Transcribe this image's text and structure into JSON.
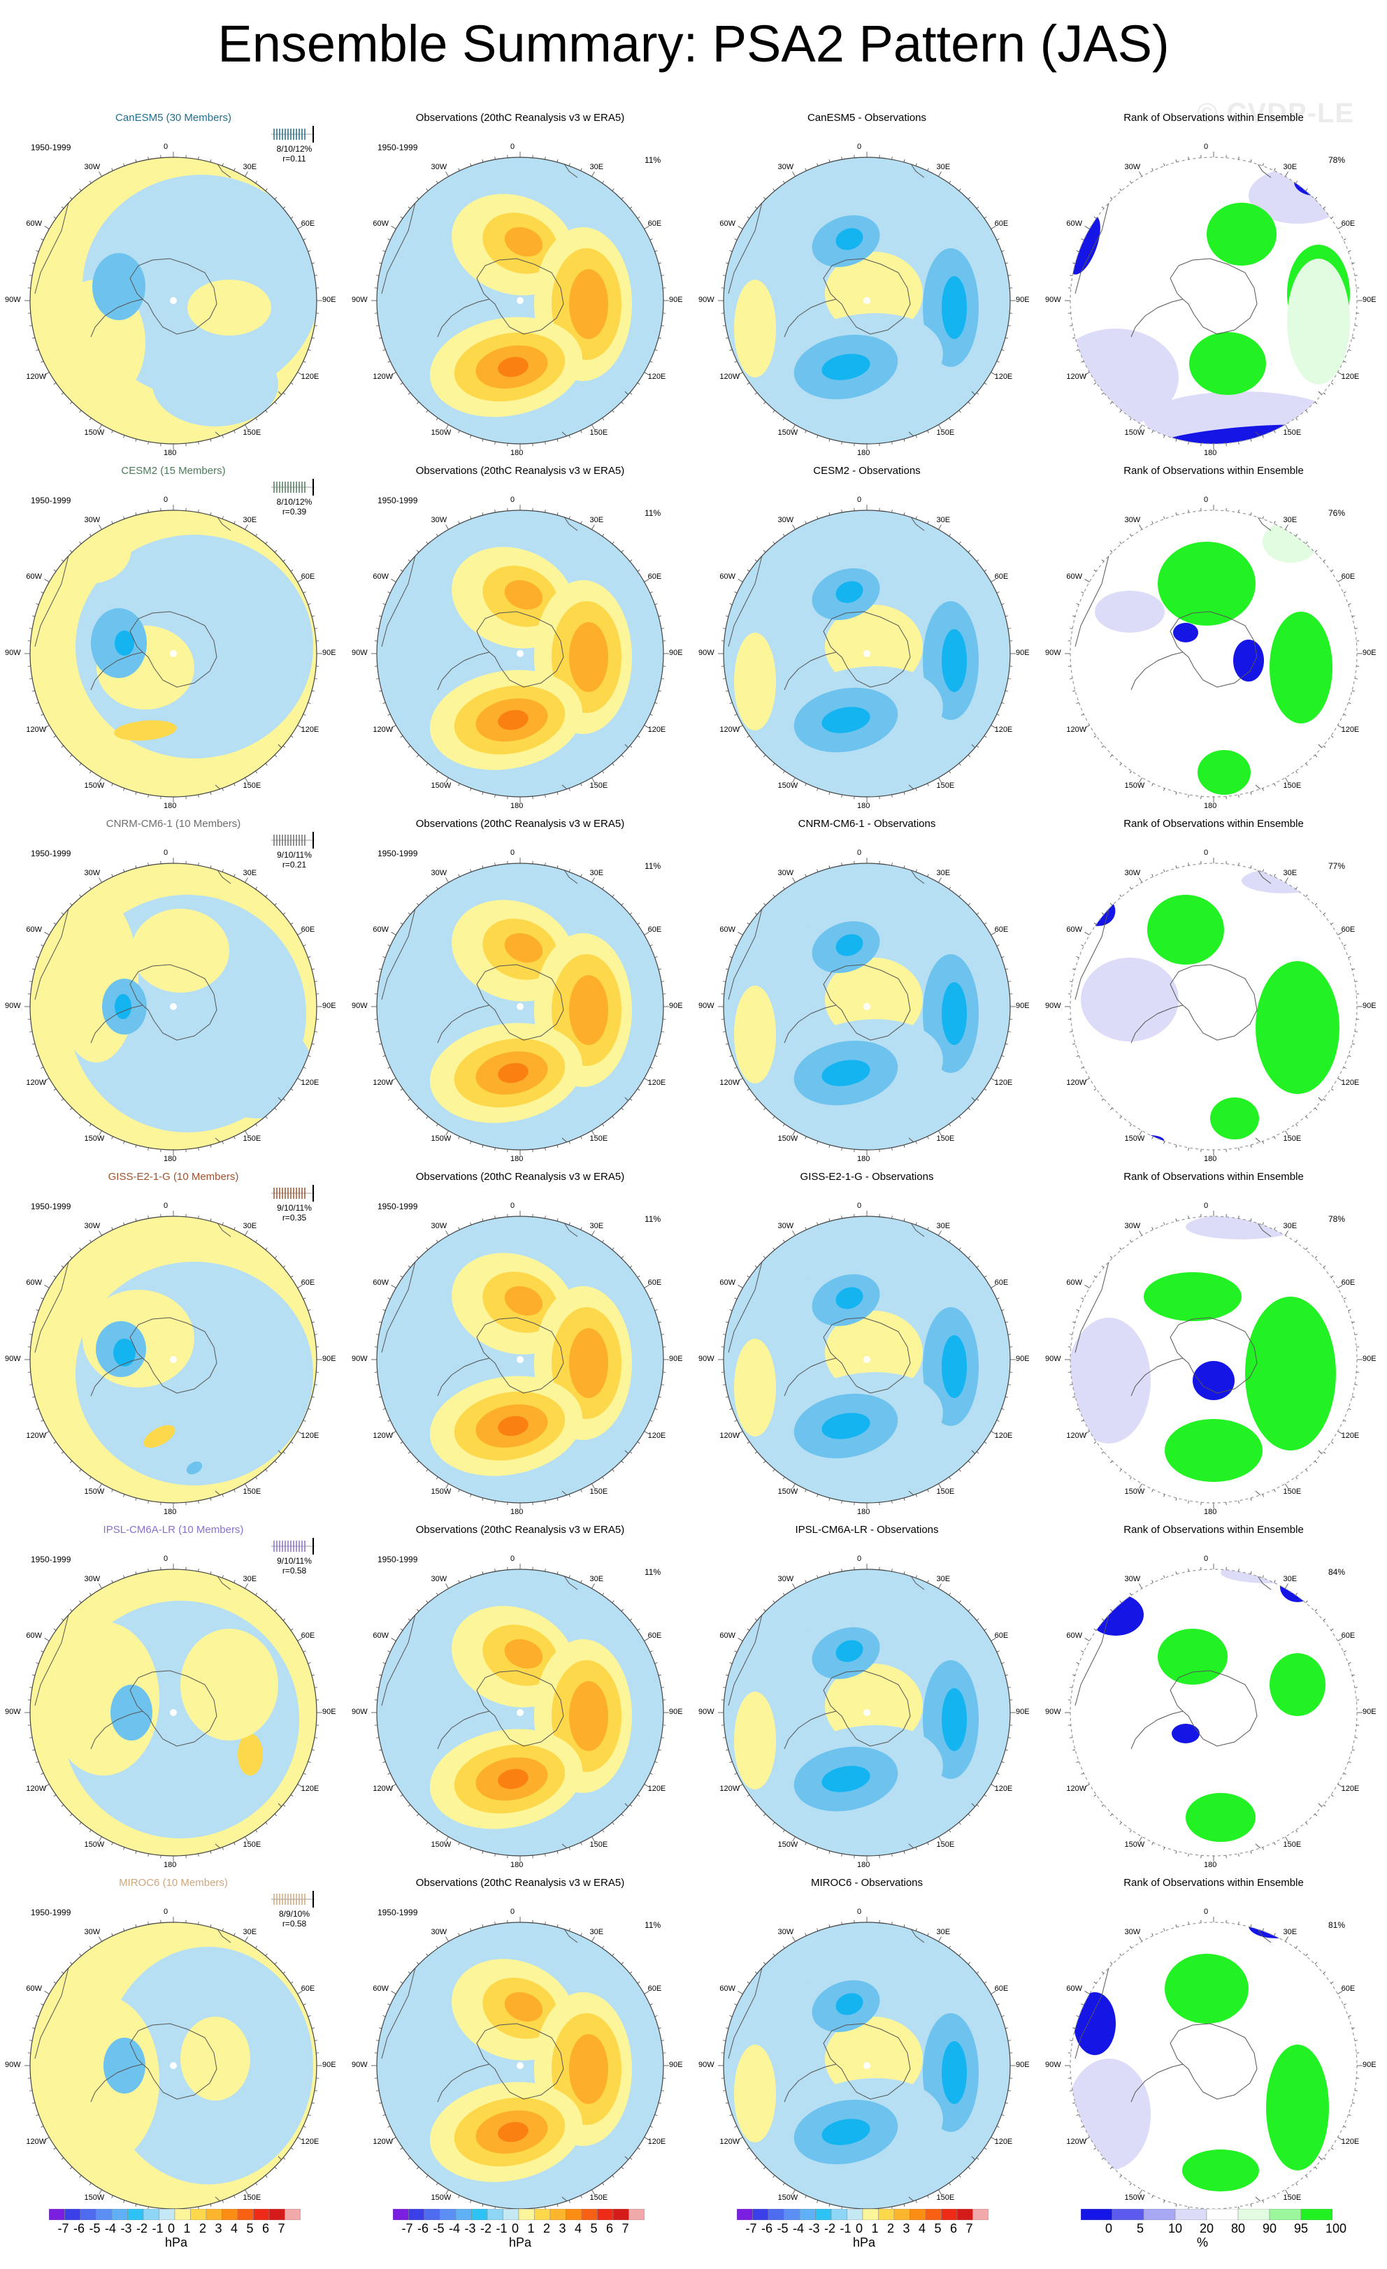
{
  "page": {
    "title": "Ensemble Summary: PSA2 Pattern (JAS)",
    "watermark": "© CVDP-LE"
  },
  "colors": {
    "pos1": "#fdf59a",
    "pos2": "#fdd84a",
    "pos3": "#fdae2b",
    "pos4": "#fb8012",
    "neg1": "#b6dff3",
    "neg2": "#6ec3ee",
    "neg3": "#14b4f0",
    "rank_green": "#22f123",
    "rank_lightgreen": "#e2fce2",
    "rank_blue": "#1515e6",
    "rank_lightblue": "#dcdcf8"
  },
  "labels": {
    "period": "1950-1999",
    "obs_title": "Observations (20thC Reanalysis v3 w ERA5)",
    "obs_pct": "11%",
    "rank_title": "Rank of Observations within Ensemble",
    "lon": [
      "0",
      "30E",
      "60E",
      "90E",
      "120E",
      "150E",
      "180",
      "150W",
      "120W",
      "90W",
      "60W",
      "30W"
    ]
  },
  "rows": [
    {
      "model": "CanESM5 (30 Members)",
      "diff_title": "CanESM5 - Observations",
      "stats": "8/10/12%",
      "r": "r=0.11",
      "rank_pct": "78%",
      "color": "#1f6e8c"
    },
    {
      "model": "CESM2 (15 Members)",
      "diff_title": "CESM2 - Observations",
      "stats": "8/10/12%",
      "r": "r=0.39",
      "rank_pct": "76%",
      "color": "#4d7a58"
    },
    {
      "model": "CNRM-CM6-1 (10 Members)",
      "diff_title": "CNRM-CM6-1 - Observations",
      "stats": "9/10/11%",
      "r": "r=0.21",
      "rank_pct": "77%",
      "color": "#6e6e6e"
    },
    {
      "model": "GISS-E2-1-G (10 Members)",
      "diff_title": "GISS-E2-1-G - Observations",
      "stats": "9/10/11%",
      "r": "r=0.35",
      "rank_pct": "78%",
      "color": "#a0522d"
    },
    {
      "model": "IPSL-CM6A-LR (10 Members)",
      "diff_title": "IPSL-CM6A-LR - Observations",
      "stats": "9/10/11%",
      "r": "r=0.58",
      "rank_pct": "84%",
      "color": "#8a6fd1"
    },
    {
      "model": "MIROC6 (10 Members)",
      "diff_title": "MIROC6 - Observations",
      "stats": "8/9/10%",
      "r": "r=0.58",
      "rank_pct": "81%",
      "color": "#cfa77d"
    }
  ],
  "colorbars": {
    "hpa": {
      "labels": [
        "-7",
        "-6",
        "-5",
        "-4",
        "-3",
        "-2",
        "-1",
        "0",
        "1",
        "2",
        "3",
        "4",
        "5",
        "6",
        "7"
      ],
      "unit": "hPa",
      "colors": [
        "#7a1fe0",
        "#3a3fe8",
        "#4f6cf0",
        "#5b8ff3",
        "#5fb0f5",
        "#2dc3f5",
        "#8fd5f5",
        "#c5e8f5",
        "#fdf59a",
        "#fdd84a",
        "#fdb52e",
        "#fb8c14",
        "#f75f12",
        "#ef2a16",
        "#d51a1a",
        "#f2a9a9"
      ]
    },
    "rank": {
      "labels": [
        "0",
        "5",
        "10",
        "20",
        "80",
        "90",
        "95",
        "100"
      ],
      "unit": "%",
      "colors": [
        "#1515e6",
        "#5b5bee",
        "#a7a7f4",
        "#dcdcf8",
        "#ffffff",
        "#e2fce2",
        "#9cf79c",
        "#22f123"
      ]
    }
  }
}
